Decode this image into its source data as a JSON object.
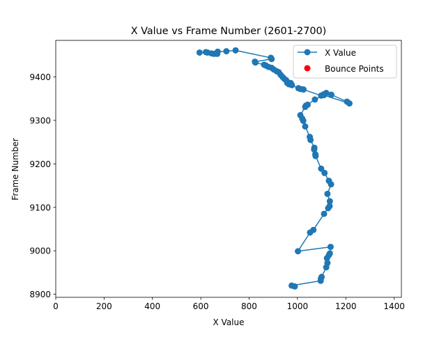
{
  "chart_data": {
    "type": "line",
    "title": "X Value vs Frame Number (2601-2700)",
    "xlabel": "X Value",
    "ylabel": "Frame Number",
    "xlim": [
      0,
      1430
    ],
    "ylim": [
      8893,
      9484
    ],
    "xticks": [
      0,
      200,
      400,
      600,
      800,
      1000,
      1200,
      1400
    ],
    "yticks": [
      8900,
      9000,
      9100,
      9200,
      9300,
      9400
    ],
    "grid": false,
    "legend_position": "top-right",
    "colors": {
      "line": "#1f77b4",
      "bounce": "#ff0000"
    },
    "series": [
      {
        "name": "X Value",
        "marker": "circle",
        "points": [
          [
            595,
            9456
          ],
          [
            621,
            9457
          ],
          [
            628,
            9456
          ],
          [
            645,
            9454
          ],
          [
            655,
            9453
          ],
          [
            668,
            9453
          ],
          [
            670,
            9458
          ],
          [
            706,
            9459
          ],
          [
            744,
            9461
          ],
          [
            890,
            9444
          ],
          [
            893,
            9441
          ],
          [
            824,
            9435
          ],
          [
            826,
            9433
          ],
          [
            862,
            9428
          ],
          [
            870,
            9426
          ],
          [
            880,
            9423
          ],
          [
            893,
            9421
          ],
          [
            902,
            9417
          ],
          [
            914,
            9413
          ],
          [
            922,
            9411
          ],
          [
            930,
            9405
          ],
          [
            938,
            9400
          ],
          [
            945,
            9396
          ],
          [
            952,
            9393
          ],
          [
            956,
            9390
          ],
          [
            958,
            9386
          ],
          [
            965,
            9383
          ],
          [
            972,
            9386
          ],
          [
            977,
            9381
          ],
          [
            1004,
            9374
          ],
          [
            1013,
            9372
          ],
          [
            1025,
            9371
          ],
          [
            1098,
            9357
          ],
          [
            1109,
            9360
          ],
          [
            1119,
            9363
          ],
          [
            1140,
            9359
          ],
          [
            1205,
            9343
          ],
          [
            1215,
            9339
          ],
          [
            1109,
            9358
          ],
          [
            1072,
            9348
          ],
          [
            1042,
            9336
          ],
          [
            1035,
            9334
          ],
          [
            1032,
            9331
          ],
          [
            1012,
            9312
          ],
          [
            1020,
            9304
          ],
          [
            1024,
            9299
          ],
          [
            1032,
            9286
          ],
          [
            1051,
            9262
          ],
          [
            1054,
            9255
          ],
          [
            1070,
            9237
          ],
          [
            1069,
            9233
          ],
          [
            1074,
            9222
          ],
          [
            1075,
            9218
          ],
          [
            1098,
            9189
          ],
          [
            1112,
            9179
          ],
          [
            1130,
            9161
          ],
          [
            1139,
            9153
          ],
          [
            1124,
            9131
          ],
          [
            1134,
            9114
          ],
          [
            1133,
            9103
          ],
          [
            1127,
            9098
          ],
          [
            1110,
            9085
          ],
          [
            1066,
            9048
          ],
          [
            1052,
            9042
          ],
          [
            1002,
            8999
          ],
          [
            1137,
            9009
          ],
          [
            1134,
            8994
          ],
          [
            1130,
            8990
          ],
          [
            1122,
            8983
          ],
          [
            1124,
            8972
          ],
          [
            1119,
            8962
          ],
          [
            1100,
            8940
          ],
          [
            1097,
            8936
          ],
          [
            1096,
            8931
          ],
          [
            976,
            8920
          ],
          [
            989,
            8918
          ]
        ]
      },
      {
        "name": "Bounce Points",
        "marker": "circle",
        "points": []
      }
    ]
  }
}
